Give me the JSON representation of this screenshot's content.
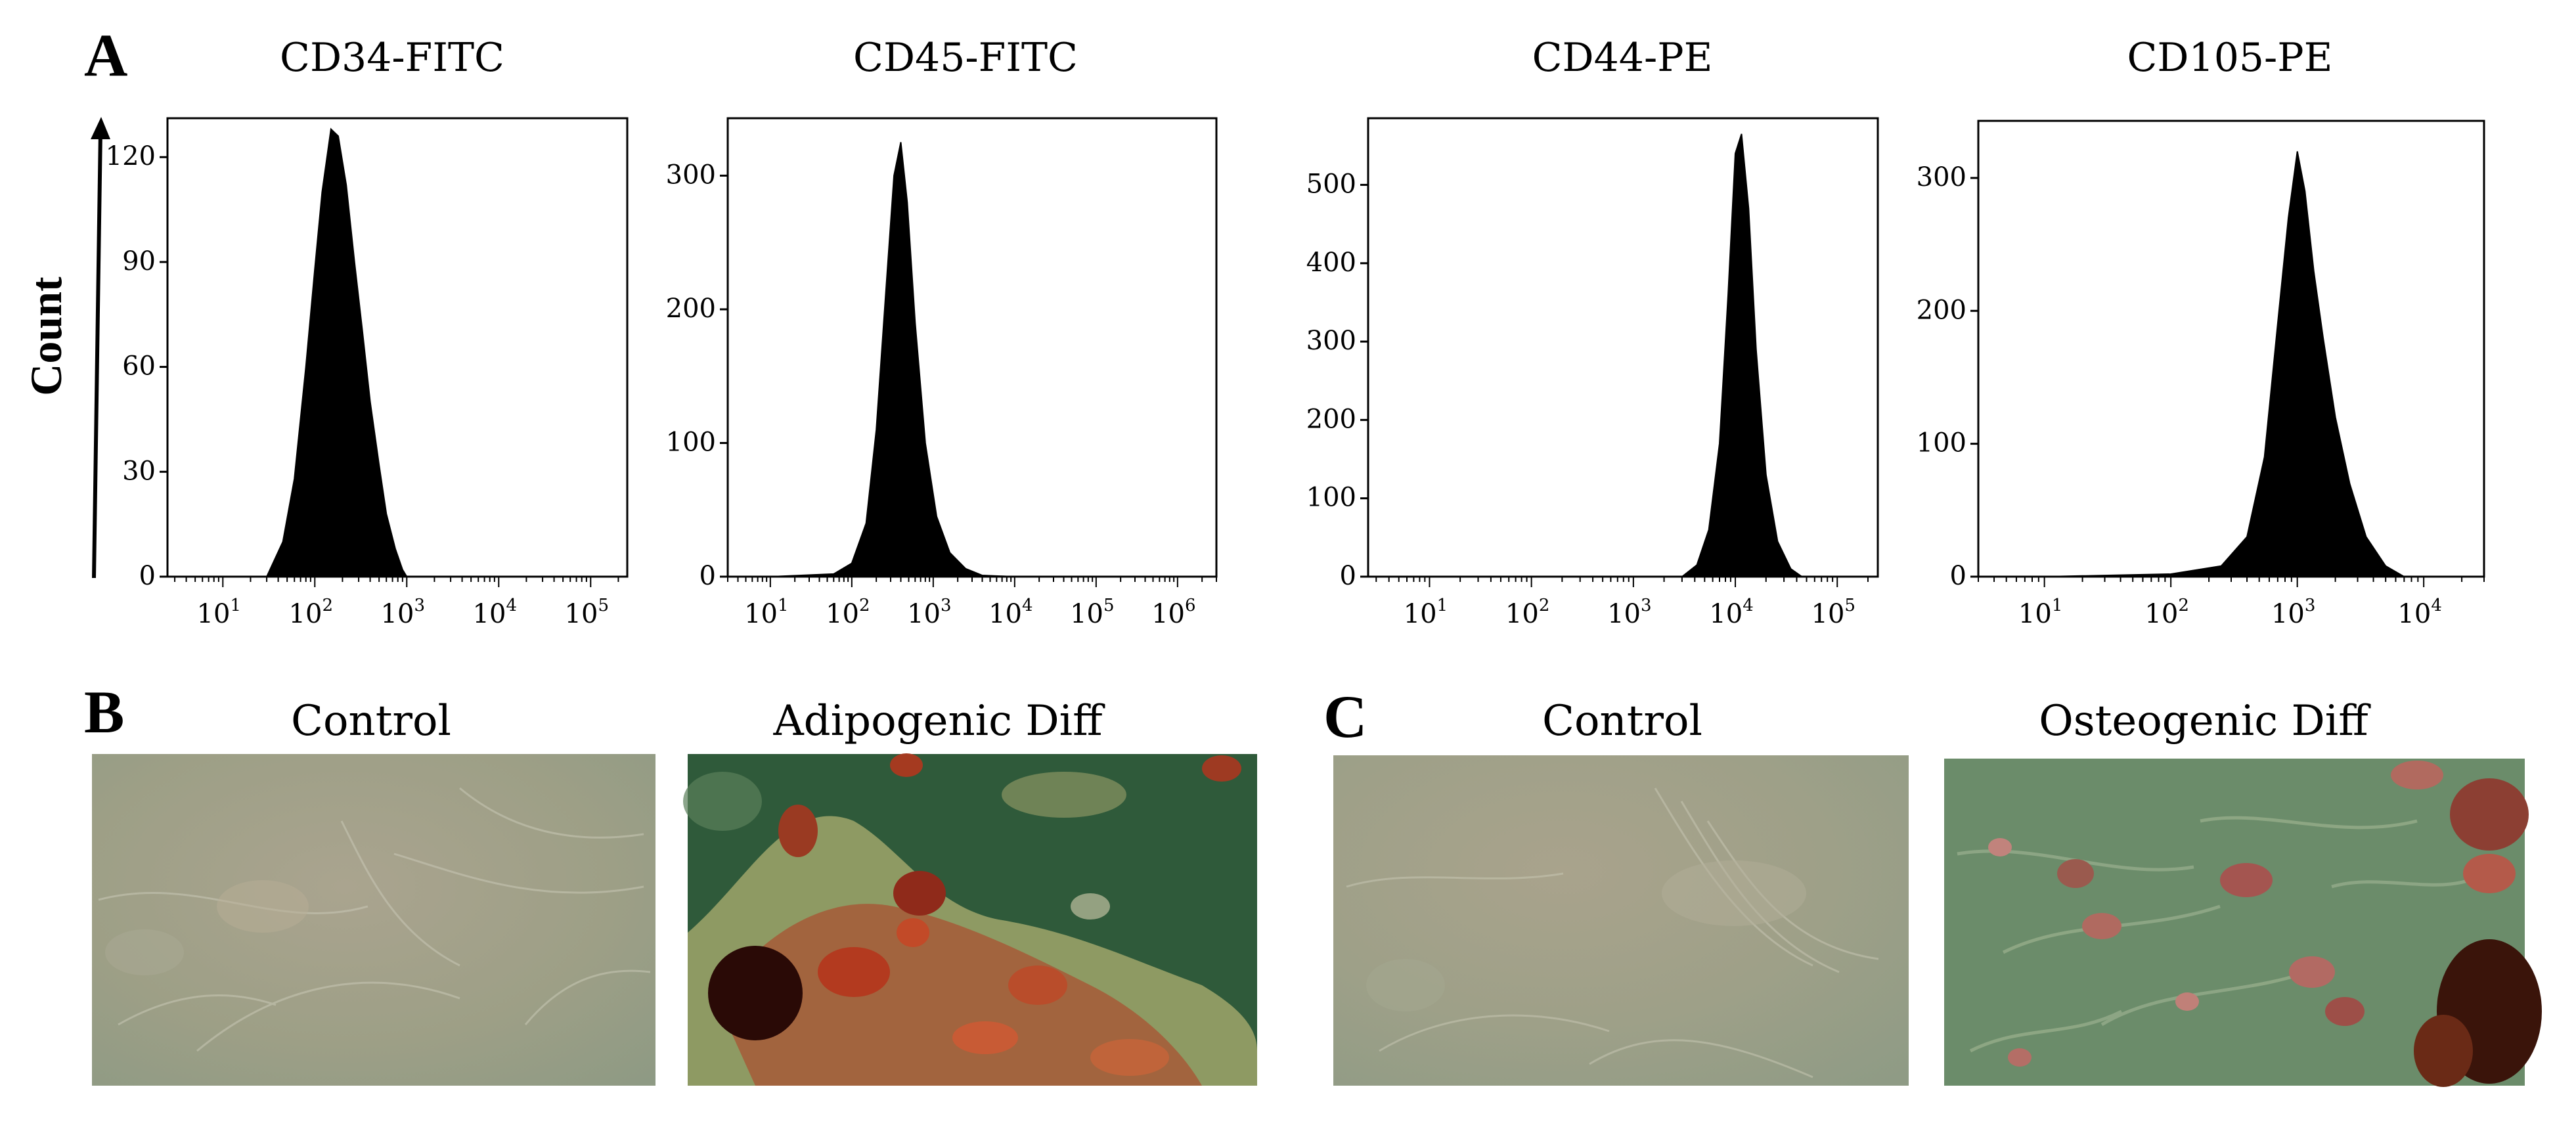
{
  "panels": {
    "a": {
      "letter": "A",
      "count_label": "Count"
    },
    "b": {
      "letter": "B",
      "images": [
        {
          "label": "Control"
        },
        {
          "label": "Adipogenic Diff"
        }
      ]
    },
    "c": {
      "letter": "C",
      "images": [
        {
          "label": "Control"
        },
        {
          "label": "Osteogenic Diff"
        }
      ]
    }
  },
  "chart_data": [
    {
      "type": "area",
      "title": "CD34-FITC",
      "ylabel": "Count",
      "x_scale": "log",
      "ylim": [
        0,
        130
      ],
      "yticks": [
        0,
        30,
        60,
        90,
        120
      ],
      "xticks": [
        10,
        100,
        1000,
        10000,
        100000
      ],
      "xtick_labels": [
        [
          "10",
          "1"
        ],
        [
          "10",
          "2"
        ],
        [
          "10",
          "3"
        ],
        [
          "10",
          "4"
        ],
        [
          "10",
          "5"
        ]
      ],
      "xlim": [
        2.5,
        250000
      ],
      "x": [
        30,
        45,
        60,
        80,
        100,
        120,
        150,
        180,
        220,
        270,
        330,
        400,
        500,
        600,
        750,
        900,
        1000
      ],
      "y": [
        0,
        10,
        28,
        60,
        88,
        110,
        128,
        126,
        112,
        90,
        70,
        50,
        32,
        18,
        8,
        2,
        0
      ]
    },
    {
      "type": "area",
      "title": "CD45-FITC",
      "x_scale": "log",
      "ylim": [
        0,
        340
      ],
      "yticks": [
        0,
        100,
        200,
        300
      ],
      "xticks": [
        10,
        100,
        1000,
        10000,
        100000,
        1000000
      ],
      "xtick_labels": [
        [
          "10",
          "1"
        ],
        [
          "10",
          "2"
        ],
        [
          "10",
          "3"
        ],
        [
          "10",
          "4"
        ],
        [
          "10",
          "5"
        ],
        [
          "10",
          "6"
        ]
      ],
      "xlim": [
        3,
        3000000
      ],
      "x": [
        10,
        60,
        100,
        150,
        200,
        260,
        330,
        400,
        480,
        600,
        800,
        1100,
        1600,
        2500,
        4000,
        10000
      ],
      "y": [
        0,
        2,
        10,
        40,
        110,
        210,
        300,
        325,
        280,
        190,
        100,
        45,
        18,
        6,
        1,
        0
      ]
    },
    {
      "type": "area",
      "title": "CD44-PE",
      "x_scale": "log",
      "ylim": [
        0,
        580
      ],
      "yticks": [
        0,
        100,
        200,
        300,
        400,
        500
      ],
      "xticks": [
        10,
        100,
        1000,
        10000,
        100000
      ],
      "xtick_labels": [
        [
          "10",
          "1"
        ],
        [
          "10",
          "2"
        ],
        [
          "10",
          "3"
        ],
        [
          "10",
          "4"
        ],
        [
          "10",
          "5"
        ]
      ],
      "xlim": [
        2.5,
        250000
      ],
      "x": [
        3000,
        4200,
        5500,
        7000,
        8500,
        10000,
        11500,
        13500,
        16000,
        20000,
        26000,
        35000,
        45000
      ],
      "y": [
        0,
        15,
        60,
        170,
        360,
        540,
        565,
        470,
        290,
        130,
        45,
        10,
        0
      ]
    },
    {
      "type": "area",
      "title": "CD105-PE",
      "x_scale": "log",
      "ylim": [
        0,
        340
      ],
      "yticks": [
        0,
        100,
        200,
        300
      ],
      "xticks": [
        10,
        100,
        1000,
        10000
      ],
      "xtick_labels": [
        [
          "10",
          "1"
        ],
        [
          "10",
          "2"
        ],
        [
          "10",
          "3"
        ],
        [
          "10",
          "4"
        ]
      ],
      "xlim": [
        3,
        30000
      ],
      "x": [
        10,
        100,
        250,
        400,
        550,
        700,
        850,
        1000,
        1150,
        1350,
        1600,
        2000,
        2600,
        3500,
        5000,
        7000
      ],
      "y": [
        0,
        2,
        8,
        30,
        90,
        190,
        270,
        320,
        290,
        230,
        180,
        120,
        70,
        30,
        8,
        0
      ]
    }
  ],
  "colors": {
    "histogram_fill": "#000000",
    "axis": "#000000"
  }
}
